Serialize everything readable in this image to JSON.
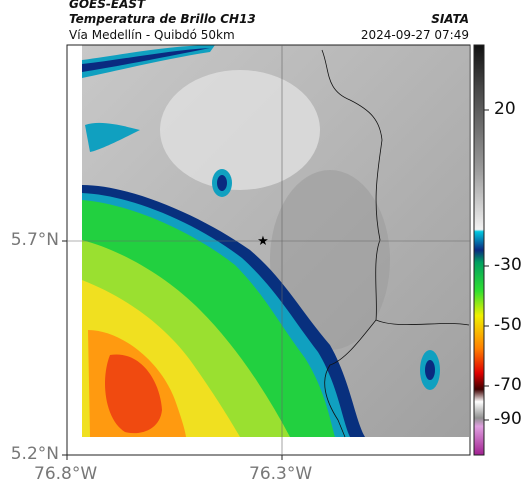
{
  "header": {
    "source": "GOES-EAST",
    "title": "Temperatura de Brillo CH13",
    "subtitle": "Vía Medellín - Quibdó 50km",
    "agency": "SIATA",
    "timestamp": "2024-09-27 07:49"
  },
  "map": {
    "lat_labels": [
      "5.7°N",
      "5.2°N"
    ],
    "lon_labels": [
      "76.8°W",
      "76.3°W"
    ]
  },
  "colorbar": {
    "labels": [
      "20",
      "-30",
      "-50",
      "-70",
      "-90"
    ]
  }
}
